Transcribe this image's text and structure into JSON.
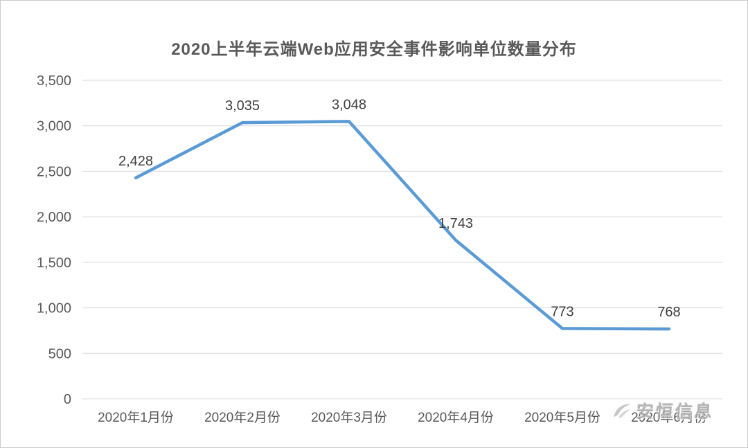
{
  "chart": {
    "watermark_text": "安恒信息"
  },
  "chart_data": {
    "type": "line",
    "title": "2020上半年云端Web应用安全事件影响单位数量分布",
    "categories": [
      "2020年1月份",
      "2020年2月份",
      "2020年3月份",
      "2020年4月份",
      "2020年5月份",
      "2020年6月份"
    ],
    "values": [
      2428,
      3035,
      3048,
      1743,
      773,
      768
    ],
    "value_labels": [
      "2,428",
      "3,035",
      "3,048",
      "1,743",
      "773",
      "768"
    ],
    "xlabel": "",
    "ylabel": "",
    "ylim": [
      0,
      3500
    ],
    "ytick_step": 500,
    "ytick_labels": [
      "0",
      "500",
      "1,000",
      "1,500",
      "2,000",
      "2,500",
      "3,000",
      "3,500"
    ],
    "grid": true,
    "legend": "none",
    "line_color": "#5b9bd5",
    "label_color": "#3f3f3f",
    "axis_text_color": "#595959",
    "gridline_color": "#d9d9d9"
  }
}
